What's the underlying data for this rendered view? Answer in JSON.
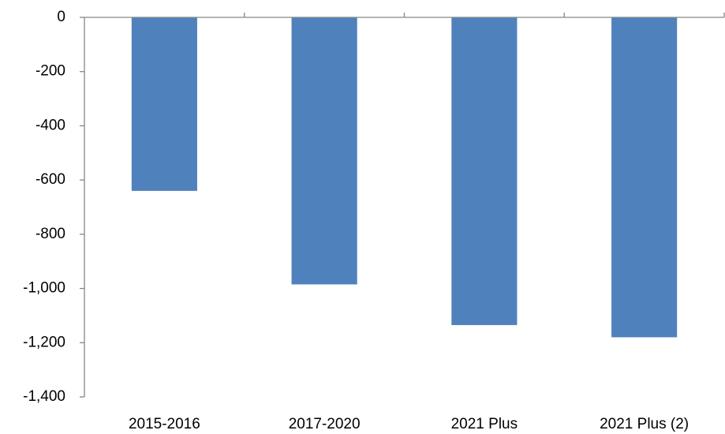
{
  "chart_data": {
    "type": "bar",
    "categories": [
      "2015-2016",
      "2017-2020",
      "2021 Plus",
      "2021 Plus (2)"
    ],
    "values": [
      -640,
      -985,
      -1135,
      -1180
    ],
    "color": "#4f81bd",
    "ylim": [
      -1400,
      0
    ],
    "yticks": [
      0,
      -200,
      -400,
      -600,
      -800,
      {
        "value": -1000,
        "label": "-1,000"
      },
      {
        "value": -1200,
        "label": "-1,200"
      },
      {
        "value": -1400,
        "label": "-1,400"
      }
    ],
    "grid": false
  }
}
